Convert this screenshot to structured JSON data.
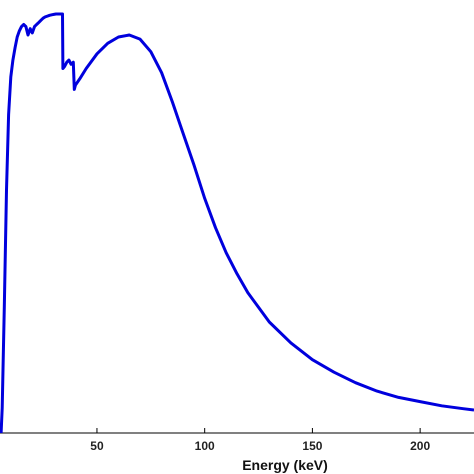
{
  "chart_data": {
    "type": "line",
    "title": "",
    "xlabel": "Energy (keV)",
    "ylabel": "",
    "xlim": [
      5,
      225
    ],
    "ylim": [
      0,
      1.0
    ],
    "xticks": [
      50,
      100,
      150,
      200
    ],
    "grid": false,
    "legend": "none",
    "series": [
      {
        "color": "#0000dd",
        "x": [
          5.5,
          6,
          7,
          8,
          9,
          10,
          11,
          12,
          13,
          14,
          15,
          16,
          17,
          18,
          19,
          20,
          21,
          22,
          23,
          24,
          25,
          26,
          27,
          28,
          29,
          30,
          31,
          32,
          33,
          34,
          34.2,
          35,
          36,
          37,
          38,
          39,
          39.5,
          40,
          42,
          45,
          50,
          55,
          60,
          65,
          70,
          75,
          80,
          85,
          90,
          95,
          100,
          105,
          110,
          115,
          120,
          125,
          130,
          140,
          150,
          160,
          170,
          180,
          190,
          200,
          210,
          220,
          225
        ],
        "y": [
          0.0,
          0.06,
          0.3,
          0.58,
          0.76,
          0.85,
          0.89,
          0.92,
          0.945,
          0.96,
          0.97,
          0.975,
          0.97,
          0.95,
          0.965,
          0.955,
          0.97,
          0.975,
          0.98,
          0.985,
          0.99,
          0.993,
          0.995,
          0.997,
          0.998,
          0.999,
          1.0,
          1.0,
          1.0,
          1.0,
          0.87,
          0.875,
          0.885,
          0.89,
          0.88,
          0.885,
          0.82,
          0.83,
          0.845,
          0.87,
          0.905,
          0.93,
          0.945,
          0.95,
          0.94,
          0.91,
          0.86,
          0.79,
          0.715,
          0.64,
          0.56,
          0.49,
          0.43,
          0.38,
          0.335,
          0.3,
          0.265,
          0.215,
          0.175,
          0.145,
          0.12,
          0.1,
          0.085,
          0.075,
          0.065,
          0.058,
          0.055
        ]
      }
    ]
  }
}
